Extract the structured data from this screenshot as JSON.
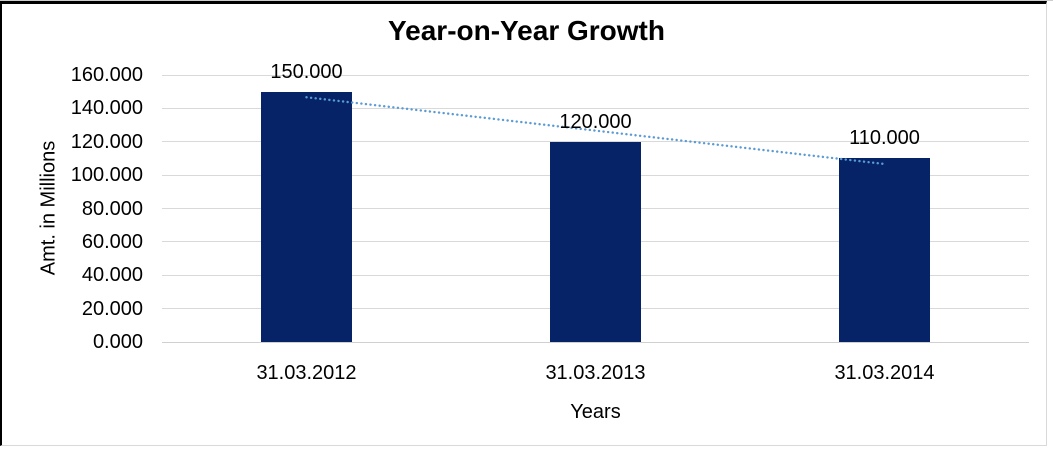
{
  "chart_data": {
    "type": "bar",
    "title": "Year-on-Year Growth",
    "xlabel": "Years",
    "ylabel": "Amt. in Millions",
    "categories": [
      "31.03.2012",
      "31.03.2013",
      "31.03.2014"
    ],
    "values": [
      150,
      120,
      110
    ],
    "data_labels": [
      "150.000",
      "120.000",
      "110.000"
    ],
    "ylim": [
      0,
      160
    ],
    "ytick_step": 20,
    "ytick_labels": [
      "0.000",
      "20.000",
      "40.000",
      "60.000",
      "80.000",
      "100.000",
      "120.000",
      "140.000",
      "160.000"
    ],
    "grid": true,
    "legend": "none",
    "bar_color": "#052366",
    "gridline_color": "#d9d9d9",
    "baseline_color": "#d0d0d0",
    "trendline": {
      "type": "linear",
      "style": "dotted",
      "color": "#5b9bd5"
    }
  }
}
